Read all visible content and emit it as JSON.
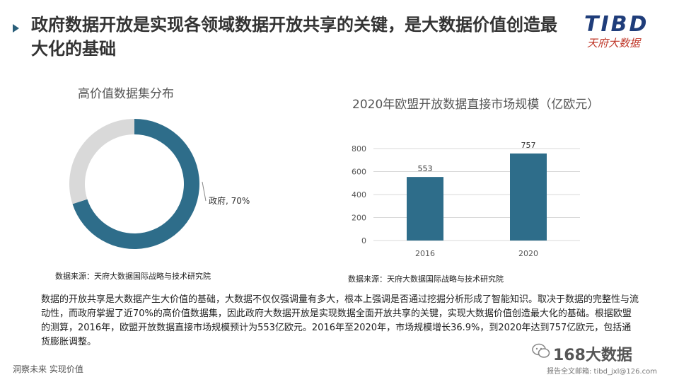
{
  "title": "政府数据开放是实现各领域数据开放共享的关键，是大数据价值创造最大化的基础",
  "logo": {
    "brand": "TIBD",
    "tagline": "天府大数据",
    "color": "#1f3d7a"
  },
  "left_chart": {
    "title": "高价值数据集分布",
    "source": "数据来源：天府大数据国际战略与技术研究院"
  },
  "right_chart": {
    "title": "2020年欧盟开放数据直接市场规模（亿欧元）",
    "source": "数据来源：天府大数据国际战略与技术研究院"
  },
  "chart_data": [
    {
      "type": "pie",
      "title": "高价值数据集分布",
      "slices": [
        {
          "name": "政府",
          "value": 70,
          "label": "政府, 70%",
          "color": "#2e6d8a"
        },
        {
          "name": "",
          "value": 30,
          "color": "#d9d9d9"
        }
      ],
      "donut": true
    },
    {
      "type": "bar",
      "title": "2020年欧盟开放数据直接市场规模（亿欧元）",
      "categories": [
        "2016",
        "2020"
      ],
      "values": [
        553,
        757
      ],
      "ylim": [
        0,
        800
      ],
      "yticks": [
        0,
        200,
        400,
        600,
        800
      ],
      "grid": true,
      "color": "#2e6d8a"
    }
  ],
  "paragraph": "数据的开放共享是大数据产生大价值的基础，大数据不仅仅强调量有多大，根本上强调是否通过挖掘分析形成了智能知识。取决于数据的完整性与流动性，而政府掌握了近70%的高价值数据集，因此政府大数据开放是实现数据全面开放共享的关键，实现大数据价值创造最大化的基础。根据欧盟的测算，2016年，欧盟开放数据直接市场规模预计为553亿欧元。2016年至2020年，市场规模增长36.9%，到2020年达到757亿欧元，包括通货膨胀调整。",
  "footer": {
    "left": "洞察未来 实现价值",
    "watermark": "168大数据",
    "right": "报告全文邮箱: tibd_jxl@126.com"
  }
}
